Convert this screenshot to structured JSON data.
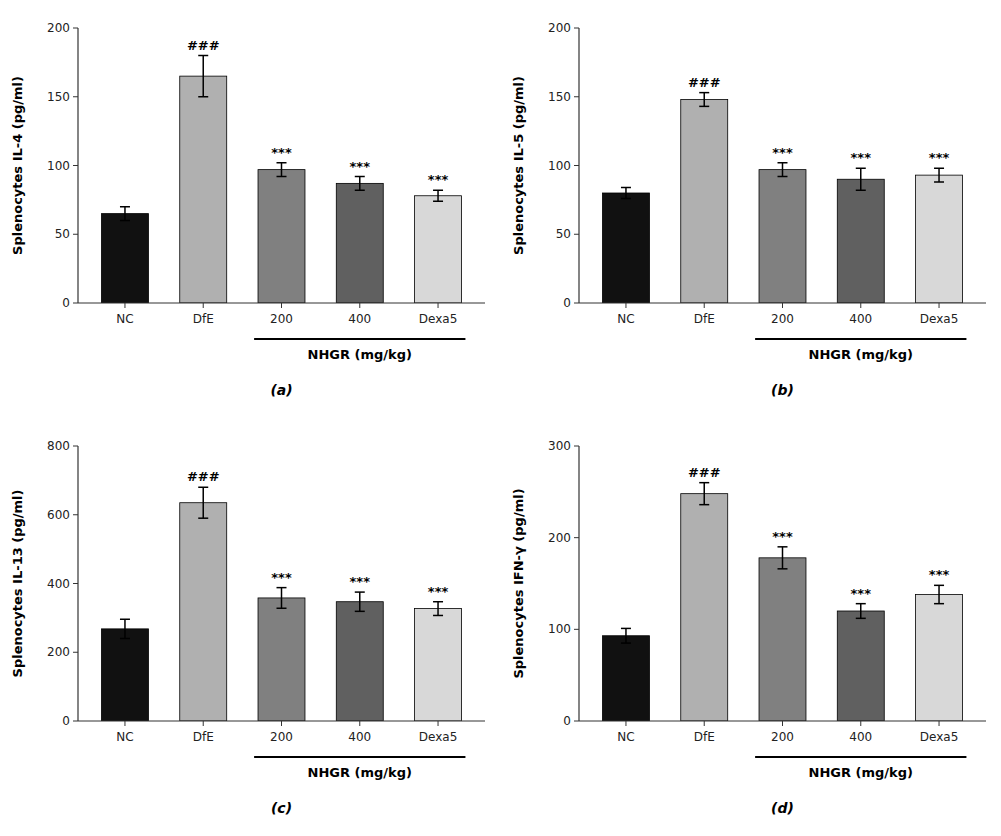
{
  "chart_data": [
    {
      "type": "bar",
      "title": "(a)",
      "ylabel": "Splenocytes IL-4 (pg/ml)",
      "categories": [
        "NC",
        "DfE",
        "200",
        "400",
        "Dexa5"
      ],
      "values": [
        65,
        165,
        97,
        87,
        78
      ],
      "errors": [
        5,
        15,
        5,
        5,
        4
      ],
      "significance": [
        null,
        "###",
        "***",
        "***",
        "***"
      ],
      "colors": [
        "#111111",
        "#b0b0b0",
        "#808080",
        "#606060",
        "#d8d8d8"
      ],
      "ylim": [
        0,
        200
      ],
      "yticks": [
        0,
        50,
        100,
        150,
        200
      ],
      "grid": false,
      "annotations": [
        {
          "text": "NHGR (mg/kg)",
          "from": "200",
          "to": "Dexa5"
        }
      ]
    },
    {
      "type": "bar",
      "title": "(b)",
      "ylabel": "Splenocytes IL-5 (pg/ml)",
      "categories": [
        "NC",
        "DfE",
        "200",
        "400",
        "Dexa5"
      ],
      "values": [
        80,
        148,
        97,
        90,
        93
      ],
      "errors": [
        4,
        5,
        5,
        8,
        5
      ],
      "significance": [
        null,
        "###",
        "***",
        "***",
        "***"
      ],
      "colors": [
        "#111111",
        "#b0b0b0",
        "#808080",
        "#606060",
        "#d8d8d8"
      ],
      "ylim": [
        0,
        200
      ],
      "yticks": [
        0,
        50,
        100,
        150,
        200
      ],
      "grid": false,
      "annotations": [
        {
          "text": "NHGR (mg/kg)",
          "from": "200",
          "to": "Dexa5"
        }
      ]
    },
    {
      "type": "bar",
      "title": "(c)",
      "ylabel": "Splenocytes IL-13 (pg/ml)",
      "categories": [
        "NC",
        "DfE",
        "200",
        "400",
        "Dexa5"
      ],
      "values": [
        268,
        635,
        358,
        347,
        327
      ],
      "errors": [
        28,
        45,
        30,
        28,
        20
      ],
      "significance": [
        null,
        "###",
        "***",
        "***",
        "***"
      ],
      "colors": [
        "#111111",
        "#b0b0b0",
        "#808080",
        "#606060",
        "#d8d8d8"
      ],
      "ylim": [
        0,
        800
      ],
      "yticks": [
        0,
        200,
        400,
        600,
        800
      ],
      "grid": false,
      "annotations": [
        {
          "text": "NHGR (mg/kg)",
          "from": "200",
          "to": "Dexa5"
        }
      ]
    },
    {
      "type": "bar",
      "title": "(d)",
      "ylabel": "Splenocytes IFN-γ (pg/ml)",
      "categories": [
        "NC",
        "DfE",
        "200",
        "400",
        "Dexa5"
      ],
      "values": [
        93,
        248,
        178,
        120,
        138
      ],
      "errors": [
        8,
        12,
        12,
        8,
        10
      ],
      "significance": [
        null,
        "###",
        "***",
        "***",
        "***"
      ],
      "colors": [
        "#111111",
        "#b0b0b0",
        "#808080",
        "#606060",
        "#d8d8d8"
      ],
      "ylim": [
        0,
        300
      ],
      "yticks": [
        0,
        100,
        200,
        300
      ],
      "grid": false,
      "annotations": [
        {
          "text": "NHGR (mg/kg)",
          "from": "200",
          "to": "Dexa5"
        }
      ]
    }
  ]
}
